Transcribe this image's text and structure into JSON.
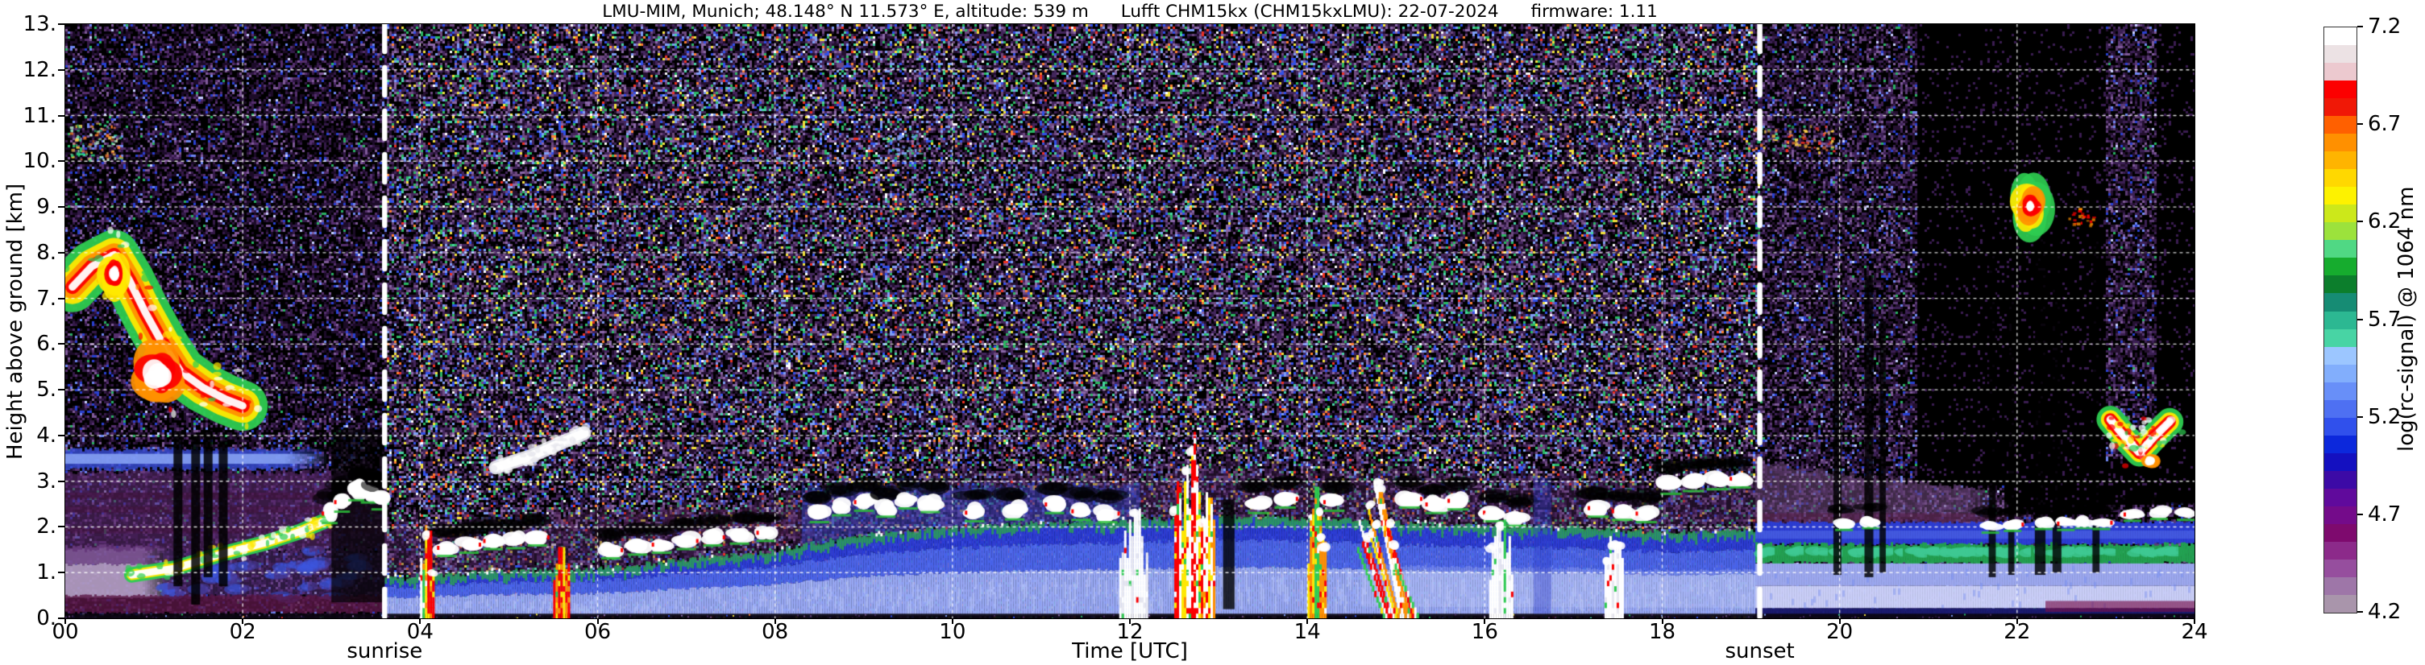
{
  "header": {
    "site": "LMU-MIM, Munich; 48.148° N 11.573° E, altitude: 539 m",
    "instrument": "Lufft CHM15kx (CHM15kxLMU): 22-07-2024",
    "firmware": "firmware: 1.11"
  },
  "axes": {
    "ylabel": "Height above ground [km]",
    "xlabel": "Time [UTC]",
    "yticks": [
      "0.",
      "1.",
      "2.",
      "3.",
      "4.",
      "5.",
      "6.",
      "7.",
      "8.",
      "9.",
      "10.",
      "11.",
      "12.",
      "13."
    ],
    "y_km": [
      0,
      1,
      2,
      3,
      4,
      5,
      6,
      7,
      8,
      9,
      10,
      11,
      12,
      13
    ],
    "xticks": [
      "00",
      "02",
      "04",
      "06",
      "08",
      "10",
      "12",
      "14",
      "16",
      "18",
      "20",
      "22",
      "24"
    ],
    "x_hours": [
      0,
      2,
      4,
      6,
      8,
      10,
      12,
      14,
      16,
      18,
      20,
      22,
      24
    ]
  },
  "sun": {
    "sunrise_label": "sunrise",
    "sunset_label": "sunset",
    "sunrise_t": 3.6,
    "sunset_t": 19.1
  },
  "colorbar": {
    "label": "log(rc-signal) @ 1064 nm",
    "ticks": [
      "7.2",
      "6.7",
      "6.2",
      "5.7",
      "5.2",
      "4.7",
      "4.2"
    ],
    "tick_values": [
      7.2,
      6.7,
      6.2,
      5.7,
      5.2,
      4.7,
      4.2
    ],
    "min": 4.2,
    "max": 7.2,
    "stops_top_to_bottom": [
      "#ffffff",
      "#ece2e4",
      "#ecc9cf",
      "#fc0000",
      "#f01806",
      "#ff6000",
      "#ff9000",
      "#ffb400",
      "#ffd800",
      "#fdf200",
      "#cce81a",
      "#9ce23c",
      "#50d884",
      "#16ac2e",
      "#0c7e2c",
      "#168c74",
      "#2cb892",
      "#48d4a4",
      "#9cc6ff",
      "#82aefc",
      "#688ff8",
      "#4e70f2",
      "#3050ec",
      "#0c28dc",
      "#1410c0",
      "#3c0aa6",
      "#600a9c",
      "#740b8a",
      "#7e0a6e",
      "#8c2a8a",
      "#964e9e",
      "#9e76a8",
      "#a995ab"
    ]
  },
  "chart_data": {
    "type": "heatmap",
    "title": "LMU-MIM, Munich; 48.148° N 11.573° E, altitude: 539 m  Lufft CHM15kx (CHM15kxLMU): 22-07-2024  firmware: 1.11",
    "xlabel": "Time [UTC]",
    "ylabel": "Height above ground [km]",
    "x_range_hours": [
      0,
      24
    ],
    "y_range_km": [
      0,
      13
    ],
    "value_range_log": [
      4.2,
      7.2
    ],
    "grid": true,
    "annotations": [
      {
        "label": "sunrise",
        "t": 3.6
      },
      {
        "label": "sunset",
        "t": 19.1
      }
    ],
    "noise": {
      "cell": 3,
      "day": [
        [
          0.17,
          "#241030"
        ],
        [
          0.15,
          "#43265c"
        ],
        [
          0.1,
          "#6e4a80"
        ],
        [
          0.06,
          "#8a68a8"
        ],
        [
          0.05,
          "#3050e8"
        ],
        [
          0.04,
          "#7e9ef5"
        ],
        [
          0.04,
          "#2bb862"
        ],
        [
          0.02,
          "#f2e23c"
        ],
        [
          0.013,
          "#ff8030"
        ],
        [
          0.01,
          "#f03020"
        ],
        [
          0.008,
          "#ffffff"
        ],
        [
          0.015,
          "#48d4a4"
        ]
      ],
      "night": [
        [
          0.2,
          "#1c0b28"
        ],
        [
          0.14,
          "#341a48"
        ],
        [
          0.09,
          "#552f6e"
        ],
        [
          0.05,
          "#7e5a98"
        ],
        [
          0.04,
          "#2840d0"
        ],
        [
          0.02,
          "#6e86f0"
        ],
        [
          0.01,
          "#28b060"
        ],
        [
          0.005,
          "#c8d0ff"
        ]
      ],
      "evening": [
        [
          0.22,
          "#241030"
        ],
        [
          0.16,
          "#3c2054"
        ],
        [
          0.1,
          "#5a3a74"
        ],
        [
          0.05,
          "#7e5a98"
        ],
        [
          0.035,
          "#2840d0"
        ],
        [
          0.02,
          "#6e86f0"
        ],
        [
          0.012,
          "#28b060"
        ],
        [
          0.006,
          "#c8d0ff"
        ]
      ],
      "deep_black_speck": "#3a1c50"
    },
    "tower_mixes": {
      "warm": [
        [
          0.3,
          "#fc0000"
        ],
        [
          0.25,
          "#ff9000"
        ],
        [
          0.2,
          "#ffe800"
        ],
        [
          0.15,
          "#ffffff"
        ],
        [
          0.1,
          "#2ecc50"
        ]
      ],
      "white": [
        [
          0.6,
          "#ffffff"
        ],
        [
          0.2,
          "#e8e8f0"
        ],
        [
          0.1,
          "#2ecc50"
        ],
        [
          0.1,
          "#fc0000"
        ]
      ],
      "storm": [
        [
          0.4,
          "#ffffff"
        ],
        [
          0.25,
          "#fc0000"
        ],
        [
          0.15,
          "#ff9000"
        ],
        [
          0.1,
          "#2ecc50"
        ],
        [
          0.1,
          "#ffe800"
        ]
      ]
    },
    "layers": {
      "night_blue_band": {
        "t0": 0,
        "t1": 2.95,
        "bot": 3.26,
        "top": 3.7,
        "edge": "#3a50dc",
        "core": "#8aa6f6"
      },
      "night_purple": {
        "t0": 0,
        "t1": 3.6,
        "bot": 1.5,
        "top": 3.2,
        "color": "#5a2a6e",
        "band": "#441038"
      },
      "mauve_wedge": {
        "t0": 0,
        "t1": 1.2,
        "bot": 0.45,
        "top": 1.58,
        "c1": "#b09ac0",
        "c2": "#7c5492"
      },
      "night_lowmix": {
        "t0": 1.1,
        "t1": 3.6,
        "bot": 0.45,
        "top": 1.5,
        "color": "#55307a",
        "blue": "#3c55e0"
      },
      "night_maroon": {
        "t0": 0,
        "t1": 3.6,
        "bot": 0.12,
        "top": 0.5,
        "color": "#5a1745"
      },
      "day_purple": {
        "t0": 3.6,
        "t1": 19.05,
        "depth": 1.15,
        "color": "#4a2458",
        "maroon": "#5a1f45"
      },
      "day_blue_upper": {
        "t0": 8.3,
        "t1": 12.1,
        "top": 2.9,
        "color": "#3346cc"
      },
      "day_bl": {
        "t0": 3.6,
        "t1": 19.05,
        "topPts": [
          [
            3.6,
            0.85
          ],
          [
            5,
            1.0
          ],
          [
            6,
            1.05
          ],
          [
            7,
            1.25
          ],
          [
            8,
            1.45
          ],
          [
            9,
            1.8
          ],
          [
            10,
            1.95
          ],
          [
            11,
            2.05
          ],
          [
            12,
            2.1
          ],
          [
            13,
            2.2
          ],
          [
            14,
            2.15
          ],
          [
            15,
            2.05
          ],
          [
            16,
            2.0
          ],
          [
            17,
            1.95
          ],
          [
            18,
            1.85
          ],
          [
            19.05,
            1.9
          ]
        ],
        "cBot": "#97a8f3",
        "cMid": "#4a64e8",
        "cTop": "#2b3cd4",
        "light": "#c9d4fb",
        "green": "#2aa44e"
      },
      "evening": {
        "t0": 19.05,
        "t1": 24,
        "lavTop": 1.2,
        "greenTop": 1.62,
        "blueTop": 2.1,
        "purpleTopPts": [
          [
            19.05,
            3.45
          ],
          [
            20,
            3.15
          ],
          [
            21,
            2.95
          ],
          [
            21.6,
            2.85
          ],
          [
            21.85,
            2.55
          ],
          [
            22.05,
            2.3
          ]
        ],
        "cLav1": "#9ca8ee",
        "cLav2": "#c9cef7",
        "cGreen": "#22a050",
        "cTeal": "#3ec892",
        "cBlue": "#2b3cd4",
        "cPurple": "#6a4878",
        "maroon": "#5a1a45",
        "cBottom": "#1a1a6e",
        "maroonStreak": "#78104a"
      },
      "surface": {
        "color": "#0a0510"
      }
    },
    "features": [
      {
        "type": "specks",
        "box": [
          0.05,
          0.62,
          10.05,
          10.85
        ],
        "n": 90,
        "colors": [
          "#2ee08a",
          "#bff0d6",
          "#ffd24a",
          "#ff8030"
        ]
      },
      {
        "type": "specks",
        "box": [
          9.25,
          9.65,
          10.15,
          10.6
        ],
        "n": 40,
        "colors": [
          "#48d4a4",
          "#7e9ef5"
        ]
      },
      {
        "type": "specks",
        "box": [
          19.0,
          19.95,
          10.2,
          10.8
        ],
        "n": 80,
        "colors": [
          "#2ee08a",
          "#ffd24a",
          "#ff8030",
          "#f03020"
        ]
      },
      {
        "type": "streak",
        "pts": [
          [
            0.08,
            7.25
          ],
          [
            0.3,
            7.7
          ],
          [
            0.55,
            7.95
          ],
          [
            0.72,
            7.4
          ],
          [
            0.9,
            6.7
          ],
          [
            1.1,
            6.0
          ],
          [
            1.3,
            5.4
          ],
          [
            1.55,
            5.05
          ],
          [
            1.8,
            4.8
          ],
          [
            2.0,
            4.65
          ]
        ],
        "w": 0.55,
        "rings": [
          "#ffffff",
          "#fc0000",
          "#ff9000",
          "#ffe800",
          "#2ecc50"
        ]
      },
      {
        "type": "blob",
        "t": 1.05,
        "h": 5.35,
        "rt": 0.24,
        "rh": 0.55,
        "rings": [
          "#ffffff",
          "#ffffff",
          "#fc0000",
          "#ff9000"
        ]
      },
      {
        "type": "blob",
        "t": 0.55,
        "h": 7.55,
        "rt": 0.13,
        "rh": 0.42,
        "rings": [
          "#ffffff",
          "#fc0000",
          "#ffe800"
        ]
      },
      {
        "type": "streak",
        "pts": [
          [
            0.75,
            0.95
          ],
          [
            1.25,
            1.1
          ],
          [
            1.75,
            1.4
          ],
          [
            2.25,
            1.65
          ],
          [
            2.65,
            1.9
          ],
          [
            2.95,
            2.15
          ]
        ],
        "w": 0.17,
        "rings": [
          "#ffffff",
          "#ffe800",
          "#2ecc50"
        ]
      },
      {
        "type": "col",
        "box": [
          1.22,
          1.32,
          0.7,
          4.1
        ],
        "color": "#000000",
        "alpha": 0.85
      },
      {
        "type": "col",
        "box": [
          1.42,
          1.52,
          0.3,
          4.0
        ],
        "color": "#000000",
        "alpha": 0.85
      },
      {
        "type": "col",
        "box": [
          1.56,
          1.66,
          0.9,
          4.1
        ],
        "color": "#000000",
        "alpha": 0.85
      },
      {
        "type": "col",
        "box": [
          1.73,
          1.83,
          0.7,
          3.9
        ],
        "color": "#000000",
        "alpha": 0.85
      },
      {
        "type": "col",
        "box": [
          3.0,
          3.6,
          0.35,
          4.15
        ],
        "color": "#000000",
        "alpha": 0.7
      },
      {
        "type": "cloudrow",
        "pts": [
          [
            2.98,
            2.3
          ],
          [
            3.12,
            2.55
          ],
          [
            3.28,
            2.8
          ],
          [
            3.42,
            2.75
          ],
          [
            3.54,
            2.6
          ]
        ],
        "rt": 0.09,
        "rh": 0.17
      },
      {
        "type": "streak",
        "pts": [
          [
            4.85,
            3.3
          ],
          [
            5.25,
            3.55
          ],
          [
            5.6,
            3.85
          ],
          [
            5.85,
            4.05
          ]
        ],
        "w": 0.15,
        "rings": [
          "#ffffff",
          "#e8e8ee"
        ]
      },
      {
        "type": "cloudrow",
        "pts": [
          [
            4.3,
            1.55
          ],
          [
            4.55,
            1.62
          ],
          [
            4.82,
            1.7
          ],
          [
            5.08,
            1.72
          ],
          [
            5.32,
            1.78
          ],
          [
            6.15,
            1.5
          ],
          [
            6.45,
            1.58
          ],
          [
            6.72,
            1.62
          ],
          [
            7.0,
            1.7
          ],
          [
            7.3,
            1.78
          ],
          [
            7.6,
            1.82
          ],
          [
            7.9,
            1.88
          ]
        ],
        "rt": 0.11,
        "rh": 0.14
      },
      {
        "type": "cloudrow",
        "pts": [
          [
            8.5,
            2.3
          ],
          [
            8.75,
            2.45
          ],
          [
            9.0,
            2.55
          ],
          [
            9.25,
            2.42
          ],
          [
            9.5,
            2.6
          ],
          [
            9.75,
            2.52
          ],
          [
            10.25,
            2.32
          ],
          [
            10.7,
            2.36
          ],
          [
            11.15,
            2.5
          ],
          [
            11.45,
            2.35
          ],
          [
            11.75,
            2.3
          ]
        ],
        "rt": 0.11,
        "rh": 0.15
      },
      {
        "type": "cloudrow",
        "pts": [
          [
            13.45,
            2.5
          ],
          [
            13.75,
            2.62
          ],
          [
            14.3,
            2.55
          ],
          [
            15.15,
            2.62
          ],
          [
            15.45,
            2.5
          ],
          [
            15.7,
            2.58
          ],
          [
            16.1,
            2.32
          ],
          [
            16.35,
            2.22
          ],
          [
            17.28,
            2.42
          ],
          [
            17.55,
            2.35
          ],
          [
            17.82,
            2.3
          ],
          [
            18.1,
            2.92
          ],
          [
            18.35,
            2.98
          ],
          [
            18.62,
            3.02
          ],
          [
            18.88,
            3.06
          ]
        ],
        "rt": 0.12,
        "rh": 0.15
      },
      {
        "type": "tower",
        "t0": 4.0,
        "t1": 4.14,
        "hTop": 2.35,
        "mix": "warm"
      },
      {
        "type": "tower",
        "t0": 5.5,
        "t1": 5.68,
        "hTop": 1.65,
        "mix": "warm"
      },
      {
        "type": "tower",
        "t0": 11.88,
        "t1": 12.18,
        "hTop": 2.6,
        "mix": "white"
      },
      {
        "type": "tower",
        "t0": 12.5,
        "t1": 12.95,
        "hTop": 4.3,
        "mix": "storm"
      },
      {
        "type": "tower",
        "t0": 14.0,
        "t1": 14.2,
        "hTop": 3.05,
        "mix": "warm"
      },
      {
        "type": "tower",
        "t0": 14.55,
        "t1": 14.95,
        "hTop": 3.0,
        "mix": "storm",
        "slant": 0.3
      },
      {
        "type": "tower",
        "t0": 16.05,
        "t1": 16.3,
        "hTop": 2.25,
        "mix": "white"
      },
      {
        "type": "tower",
        "t0": 17.35,
        "t1": 17.55,
        "hTop": 2.1,
        "mix": "white"
      },
      {
        "type": "col",
        "box": [
          13.05,
          13.18,
          0.2,
          2.6
        ],
        "color": "#000000",
        "alpha": 0.8
      },
      {
        "type": "col",
        "box": [
          16.55,
          16.75,
          0.1,
          3.1
        ],
        "color": "#2c3cc8",
        "alpha": 0.4
      },
      {
        "type": "col",
        "box": [
          19.93,
          20.02,
          0.95,
          7.0
        ],
        "color": "#000000",
        "alpha": 0.82
      },
      {
        "type": "col",
        "box": [
          20.28,
          20.38,
          0.9,
          7.5
        ],
        "color": "#000000",
        "alpha": 0.82
      },
      {
        "type": "col",
        "box": [
          20.45,
          20.52,
          1.0,
          6.5
        ],
        "color": "#000000",
        "alpha": 0.82
      },
      {
        "type": "col",
        "box": [
          21.68,
          21.76,
          0.9,
          8.0
        ],
        "color": "#000000",
        "alpha": 0.82
      },
      {
        "type": "col",
        "box": [
          21.9,
          21.97,
          0.95,
          7.0
        ],
        "color": "#000000",
        "alpha": 0.82
      },
      {
        "type": "col",
        "box": [
          22.2,
          22.32,
          0.95,
          9.5
        ],
        "color": "#000000",
        "alpha": 0.82
      },
      {
        "type": "col",
        "box": [
          22.4,
          22.5,
          1.0,
          8.5
        ],
        "color": "#000000",
        "alpha": 0.82
      },
      {
        "type": "col",
        "box": [
          22.85,
          22.93,
          1.0,
          9.0
        ],
        "color": "#000000",
        "alpha": 0.82
      },
      {
        "type": "blob",
        "t": 22.15,
        "h": 9.0,
        "rt": 0.2,
        "rh": 0.5,
        "rings": [
          "#ffffff",
          "#fc0000",
          "#ff9000",
          "#ffe800",
          "#2ecc50"
        ]
      },
      {
        "type": "specks",
        "box": [
          22.55,
          22.85,
          8.6,
          9.0
        ],
        "n": 25,
        "colors": [
          "#ff9000",
          "#fc0000"
        ]
      },
      {
        "type": "streak",
        "pts": [
          [
            23.05,
            4.35
          ],
          [
            23.2,
            4.0
          ],
          [
            23.38,
            3.62
          ],
          [
            23.55,
            3.98
          ],
          [
            23.72,
            4.3
          ]
        ],
        "w": 0.3,
        "rings": [
          "#ffffff",
          "#ffffff",
          "#fc0000",
          "#ffe800",
          "#2ecc50"
        ]
      },
      {
        "type": "blob",
        "t": 23.5,
        "h": 3.45,
        "rt": 0.08,
        "rh": 0.14,
        "rings": [
          "#ffffff",
          "#ff9000"
        ]
      },
      {
        "type": "cloudrow",
        "pts": [
          [
            20.05,
            2.08
          ],
          [
            20.35,
            2.12
          ],
          [
            21.7,
            2.02
          ],
          [
            21.95,
            2.06
          ],
          [
            22.3,
            2.1
          ],
          [
            22.55,
            2.08
          ],
          [
            22.75,
            2.12
          ],
          [
            22.95,
            2.1
          ],
          [
            23.3,
            2.28
          ],
          [
            23.6,
            2.32
          ],
          [
            23.9,
            2.3
          ]
        ],
        "rt": 0.1,
        "rh": 0.1
      }
    ]
  }
}
